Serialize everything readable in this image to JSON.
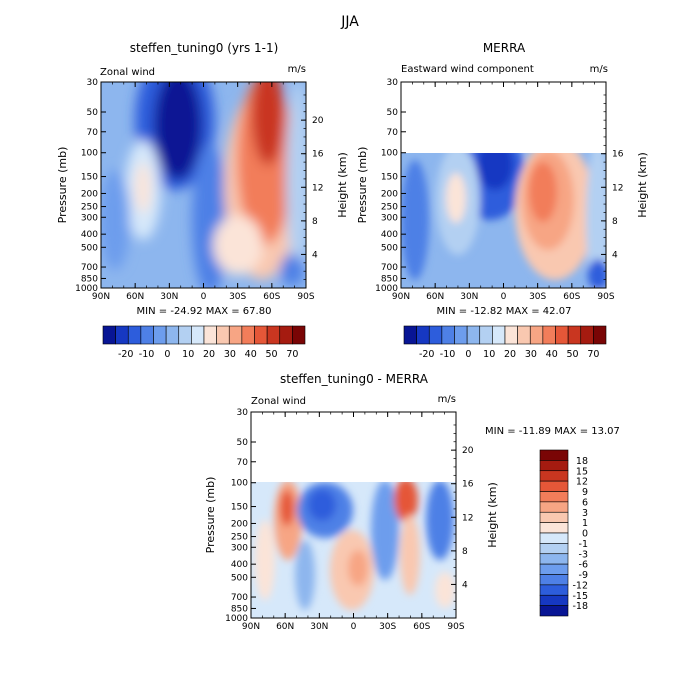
{
  "figure_title": "JJA",
  "colors": {
    "pos": [
      "#fbe4d8",
      "#f9c8b0",
      "#f7a584",
      "#f27d5a",
      "#e55738",
      "#c93620",
      "#a51b10",
      "#7a0505"
    ],
    "neg": [
      "#d6e8fa",
      "#b3d0f2",
      "#8db6ee",
      "#6d9ded",
      "#4e80e6",
      "#2d5ddc",
      "#1638c2",
      "#081594"
    ]
  },
  "chart_data": [
    {
      "id": "model",
      "type": "heatmap",
      "title": "steffen_tuning0 (yrs 1-1)",
      "subtitle_left": "Zonal wind",
      "units": "m/s",
      "xlabel": "",
      "ylabel": "Pressure (mb)",
      "ylabel_right": "Height (km)",
      "x_ticks": [
        "90N",
        "60N",
        "30N",
        "0",
        "30S",
        "60S",
        "90S"
      ],
      "y_ticks": [
        "30",
        "50",
        "70",
        "100",
        "150",
        "200",
        "250",
        "300",
        "400",
        "500",
        "700",
        "850",
        "1000"
      ],
      "height_ticks": [
        "4",
        "8",
        "12",
        "16",
        "20"
      ],
      "stats": "MIN = -24.92   MAX = 67.80",
      "colorbar_labels": [
        "-20",
        "-10",
        "0",
        "10",
        "20",
        "30",
        "40",
        "50",
        "70"
      ]
    },
    {
      "id": "merra",
      "type": "heatmap",
      "title": "MERRA",
      "subtitle_left": "Eastward wind component",
      "units": "m/s",
      "xlabel": "",
      "ylabel": "Pressure (mb)",
      "ylabel_right": "Height (km)",
      "x_ticks": [
        "90N",
        "60N",
        "30N",
        "0",
        "30S",
        "60S",
        "90S"
      ],
      "y_ticks": [
        "30",
        "50",
        "70",
        "100",
        "150",
        "200",
        "250",
        "300",
        "400",
        "500",
        "700",
        "850",
        "1000"
      ],
      "height_ticks": [
        "4",
        "8",
        "12",
        "16"
      ],
      "stats": "MIN = -12.82   MAX = 42.07",
      "colorbar_labels": [
        "-20",
        "-10",
        "0",
        "10",
        "20",
        "30",
        "40",
        "50",
        "70"
      ]
    },
    {
      "id": "diff",
      "type": "heatmap",
      "title": "steffen_tuning0 - MERRA",
      "subtitle_left": "Zonal wind",
      "units": "m/s",
      "xlabel": "",
      "ylabel": "Pressure (mb)",
      "ylabel_right": "Height (km)",
      "x_ticks": [
        "90N",
        "60N",
        "30N",
        "0",
        "30S",
        "60S",
        "90S"
      ],
      "y_ticks": [
        "30",
        "50",
        "70",
        "100",
        "150",
        "200",
        "250",
        "300",
        "400",
        "500",
        "700",
        "850",
        "1000"
      ],
      "height_ticks": [
        "4",
        "8",
        "12",
        "16",
        "20"
      ],
      "stats": "MIN = -11.89   MAX =  13.07",
      "colorbar_labels": [
        "18",
        "15",
        "12",
        "9",
        "6",
        "3",
        "1",
        "0",
        "-1",
        "-3",
        "-6",
        "-9",
        "-12",
        "-15",
        "-18"
      ]
    }
  ]
}
